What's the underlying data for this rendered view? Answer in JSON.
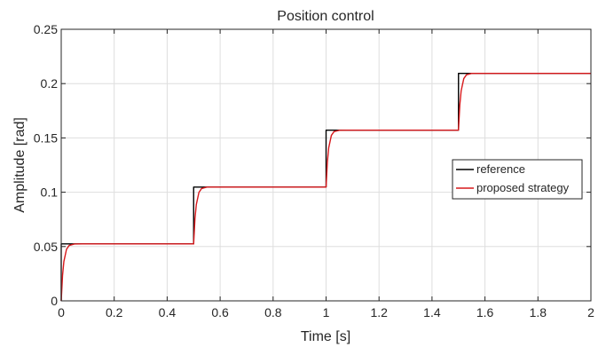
{
  "chart_data": {
    "type": "line",
    "title": "Position control",
    "xlabel": "Time [s]",
    "ylabel": "Amplitude [rad]",
    "xlim": [
      0,
      2
    ],
    "ylim": [
      0,
      0.25
    ],
    "x_ticks": [
      0,
      0.2,
      0.4,
      0.6,
      0.8,
      1,
      1.2,
      1.4,
      1.6,
      1.8,
      2
    ],
    "x_tick_labels": [
      "0",
      "0.2",
      "0.4",
      "0.6",
      "0.8",
      "1",
      "1.2",
      "1.4",
      "1.6",
      "1.8",
      "2"
    ],
    "y_ticks": [
      0,
      0.05,
      0.1,
      0.15,
      0.2,
      0.25
    ],
    "y_tick_labels": [
      "0",
      "0.05",
      "0.1",
      "0.15",
      "0.2",
      "0.25"
    ],
    "grid": true,
    "legend_position": "right",
    "series": [
      {
        "name": "reference",
        "color": "#000000",
        "x": [
          0,
          0,
          0.5,
          0.5,
          1,
          1,
          1.5,
          1.5,
          2
        ],
        "y": [
          0,
          0.0524,
          0.0524,
          0.1047,
          0.1047,
          0.1571,
          0.1571,
          0.2094,
          0.2094
        ]
      },
      {
        "name": "proposed strategy",
        "color": "#d7191c",
        "x": [
          0,
          0.005,
          0.01,
          0.02,
          0.03,
          0.05,
          0.08,
          0.12,
          0.5,
          0.505,
          0.51,
          0.52,
          0.53,
          0.55,
          0.58,
          0.62,
          1,
          1.005,
          1.01,
          1.02,
          1.03,
          1.05,
          1.08,
          1.12,
          1.5,
          1.505,
          1.51,
          1.52,
          1.53,
          1.55,
          1.58,
          1.62,
          2
        ],
        "y": [
          0,
          0.0233,
          0.0362,
          0.0475,
          0.051,
          0.0523,
          0.0524,
          0.0524,
          0.0524,
          0.0757,
          0.0886,
          0.0999,
          0.1034,
          0.1047,
          0.1047,
          0.1047,
          0.1047,
          0.128,
          0.141,
          0.1523,
          0.1558,
          0.157,
          0.1571,
          0.1571,
          0.1571,
          0.1804,
          0.1933,
          0.2046,
          0.2081,
          0.2094,
          0.2094,
          0.2094,
          0.2094
        ]
      }
    ]
  }
}
